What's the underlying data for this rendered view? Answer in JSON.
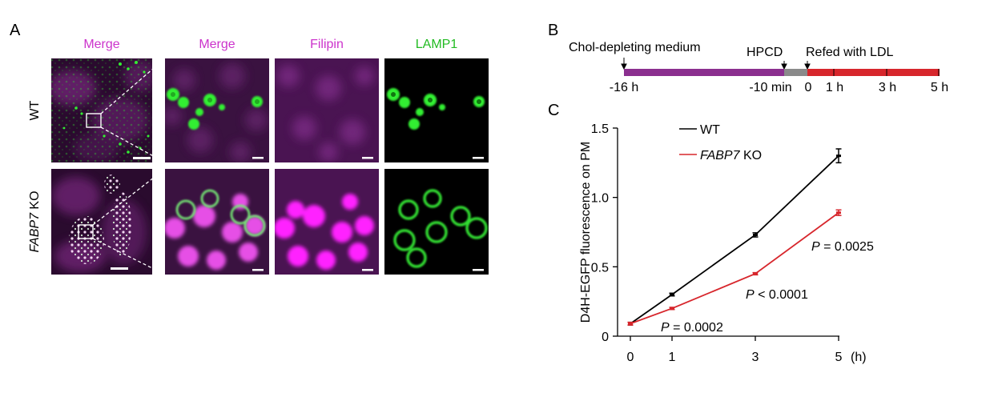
{
  "panel_a": {
    "letter": "A",
    "columns": [
      "Merge",
      "Merge",
      "Filipin",
      "LAMP1"
    ],
    "column_colors": [
      "#cc33cc",
      "#cc33cc",
      "#cc33cc",
      "#22bb22"
    ],
    "rows": [
      {
        "label": "WT",
        "italic_part": "",
        "plain_part": "WT"
      },
      {
        "label": "FABP7 KO",
        "italic_part": "FABP7",
        "plain_part": " KO"
      }
    ]
  },
  "panel_b": {
    "letter": "B",
    "phase_labels": [
      "Chol-depleting medium",
      "HPCD",
      "Refed with LDL"
    ],
    "tick_labels": [
      "-16 h",
      "-10 min",
      "0",
      "1 h",
      "3 h",
      "5 h"
    ],
    "colors": {
      "depleting": "#8b2f8f",
      "hpcd": "#8a8a8a",
      "refed": "#d7262c"
    }
  },
  "panel_c": {
    "letter": "C"
  },
  "chart_data": {
    "type": "line",
    "ylabel": "D4H-EGFP fluorescence on PM",
    "xlabel": "",
    "x_unit": "(h)",
    "x": [
      0,
      1,
      3,
      5
    ],
    "xticks": [
      "0",
      "1",
      "3",
      "5"
    ],
    "ylim": [
      0,
      1.5
    ],
    "yticks": [
      "0",
      "0.5",
      "1.0",
      "1.5"
    ],
    "ytick_values": [
      0,
      0.5,
      1.0,
      1.5
    ],
    "series": [
      {
        "name": "WT",
        "italic_part": "",
        "plain_part": "WT",
        "color": "#000000",
        "values": [
          0.09,
          0.3,
          0.73,
          1.3
        ],
        "errors": [
          0.01,
          0.01,
          0.015,
          0.05
        ]
      },
      {
        "name": "FABP7 KO",
        "italic_part": "FABP7",
        "plain_part": " KO",
        "color": "#d7262c",
        "values": [
          0.09,
          0.2,
          0.45,
          0.89
        ],
        "errors": [
          0.01,
          0.008,
          0.008,
          0.02
        ]
      }
    ],
    "annotations": [
      {
        "p": "P",
        "text": " = 0.0002"
      },
      {
        "p": "P",
        "text": " < 0.0001"
      },
      {
        "p": "P",
        "text": " = 0.0025"
      }
    ],
    "legend_position": "top-left"
  }
}
